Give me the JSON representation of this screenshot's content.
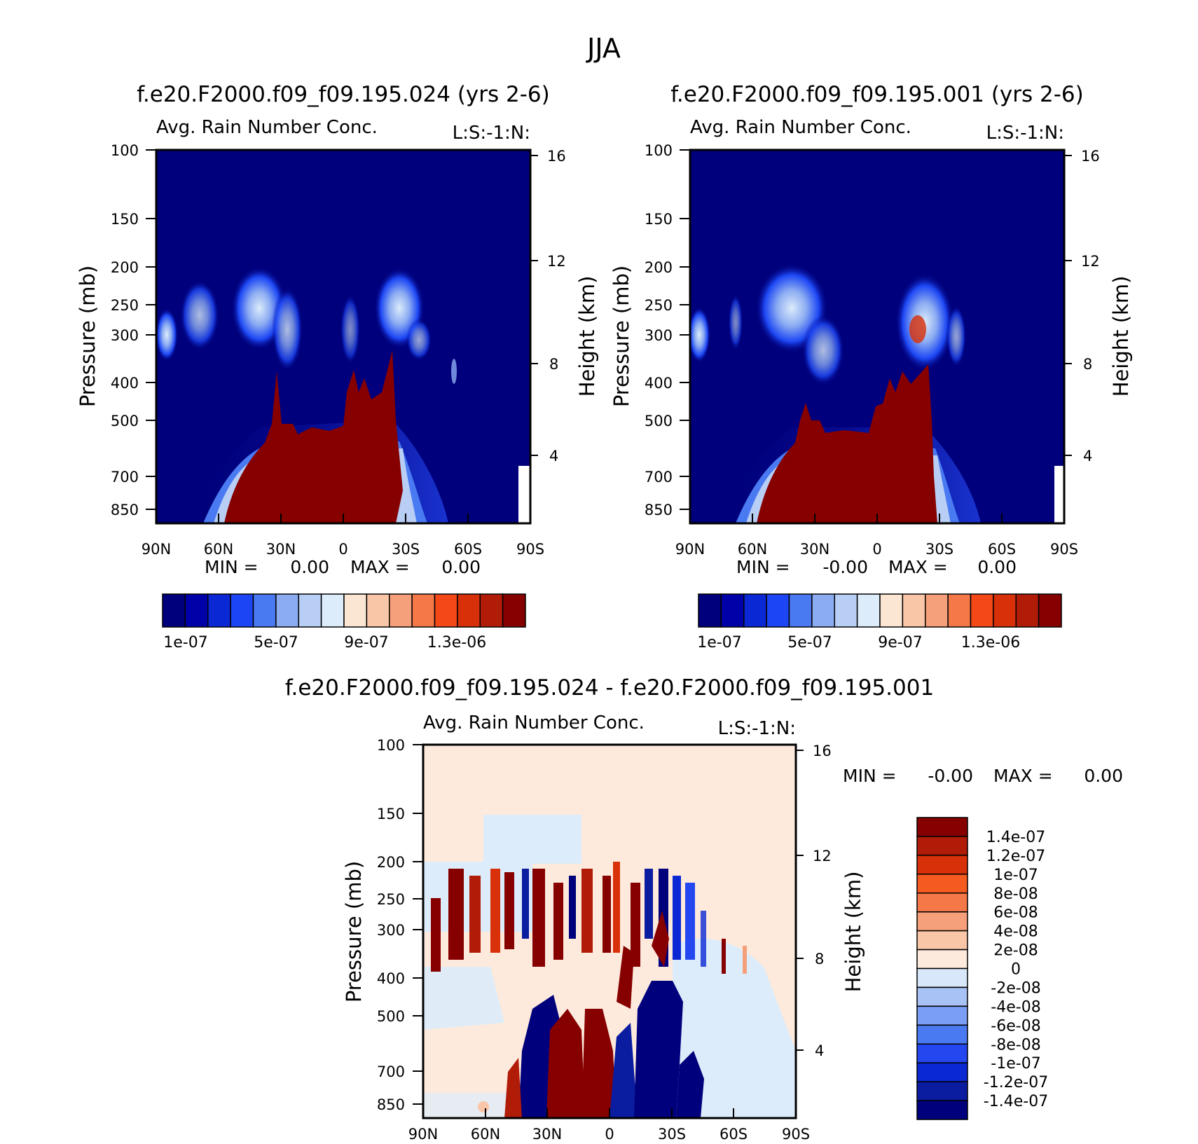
{
  "figure": {
    "season": "JJA",
    "colors": {
      "seq": [
        "#00007c",
        "#0000a8",
        "#0a28d4",
        "#1c46f4",
        "#4a7af2",
        "#8cacf2",
        "#b8cef4",
        "#dcecfa",
        "#fbe6d4",
        "#f9c6a8",
        "#f5a07a",
        "#f57848",
        "#f54818",
        "#d83008",
        "#b01c08",
        "#870000"
      ],
      "diff": [
        "#00007c",
        "#0a1ca0",
        "#0a28d4",
        "#2447f0",
        "#4a7af2",
        "#7a9ef4",
        "#a8c2f6",
        "#d8e8fa",
        "#fdeadc",
        "#f9c6a8",
        "#f5a07a",
        "#f57848",
        "#f55a20",
        "#d83008",
        "#b01c08",
        "#870000"
      ]
    }
  },
  "chart_data": [
    {
      "type": "heatmap",
      "title": "f.e20.F2000.f09_f09.195.024 (yrs 2-6)",
      "subtitle": "Avg. Rain Number Conc.",
      "units_label": "L:S:-1:N:",
      "xlabel": "",
      "ylabel": "Pressure (mb)",
      "ylabel_right": "Height (km)",
      "x_ticks": [
        "90N",
        "60N",
        "30N",
        "0",
        "30S",
        "60S",
        "90S"
      ],
      "y_ticks": [
        "100",
        "150",
        "200",
        "250",
        "300",
        "400",
        "500",
        "700",
        "850"
      ],
      "y_right_ticks": [
        "16",
        "12",
        "8",
        "4"
      ],
      "min_label": "MIN =",
      "min_value": "0.00",
      "max_label": "MAX =",
      "max_value": "0.00",
      "colorbar_labels": [
        "1e-07",
        "5e-07",
        "9e-07",
        "1.3e-06"
      ],
      "levels": [
        "1e-07",
        "2e-07",
        "3e-07",
        "4e-07",
        "5e-07",
        "6e-07",
        "7e-07",
        "8e-07",
        "9e-07",
        "1e-06",
        "1.1e-06",
        "1.2e-06",
        "1.3e-06",
        "1.4e-06",
        "1.5e-06"
      ],
      "ylim": [
        100,
        950
      ],
      "xlim": [
        90,
        -90
      ]
    },
    {
      "type": "heatmap",
      "title": "f.e20.F2000.f09_f09.195.001 (yrs 2-6)",
      "subtitle": "Avg. Rain Number Conc.",
      "units_label": "L:S:-1:N:",
      "xlabel": "",
      "ylabel": "Pressure (mb)",
      "ylabel_right": "Height (km)",
      "x_ticks": [
        "90N",
        "60N",
        "30N",
        "0",
        "30S",
        "60S",
        "90S"
      ],
      "y_ticks": [
        "100",
        "150",
        "200",
        "250",
        "300",
        "400",
        "500",
        "700",
        "850"
      ],
      "y_right_ticks": [
        "16",
        "12",
        "8",
        "4"
      ],
      "min_label": "MIN =",
      "min_value": "-0.00",
      "max_label": "MAX =",
      "max_value": "0.00",
      "colorbar_labels": [
        "1e-07",
        "5e-07",
        "9e-07",
        "1.3e-06"
      ],
      "ylim": [
        100,
        950
      ],
      "xlim": [
        90,
        -90
      ]
    },
    {
      "type": "heatmap",
      "title": "f.e20.F2000.f09_f09.195.024 - f.e20.F2000.f09_f09.195.001",
      "subtitle": "Avg. Rain Number Conc.",
      "units_label": "L:S:-1:N:",
      "xlabel": "",
      "ylabel": "Pressure (mb)",
      "ylabel_right": "Height (km)",
      "x_ticks": [
        "90N",
        "60N",
        "30N",
        "0",
        "30S",
        "60S",
        "90S"
      ],
      "y_ticks": [
        "100",
        "150",
        "200",
        "250",
        "300",
        "400",
        "500",
        "700",
        "850"
      ],
      "y_right_ticks": [
        "16",
        "12",
        "8",
        "4"
      ],
      "min_label": "MIN =",
      "min_value": "-0.00",
      "max_label": "MAX =",
      "max_value": "0.00",
      "colorbar_labels": [
        "1.4e-07",
        "1.2e-07",
        "1e-07",
        "8e-08",
        "6e-08",
        "4e-08",
        "2e-08",
        "0",
        "-2e-08",
        "-4e-08",
        "-6e-08",
        "-8e-08",
        "-1e-07",
        "-1.2e-07",
        "-1.4e-07"
      ],
      "ylim": [
        100,
        950
      ],
      "xlim": [
        90,
        -90
      ]
    }
  ]
}
